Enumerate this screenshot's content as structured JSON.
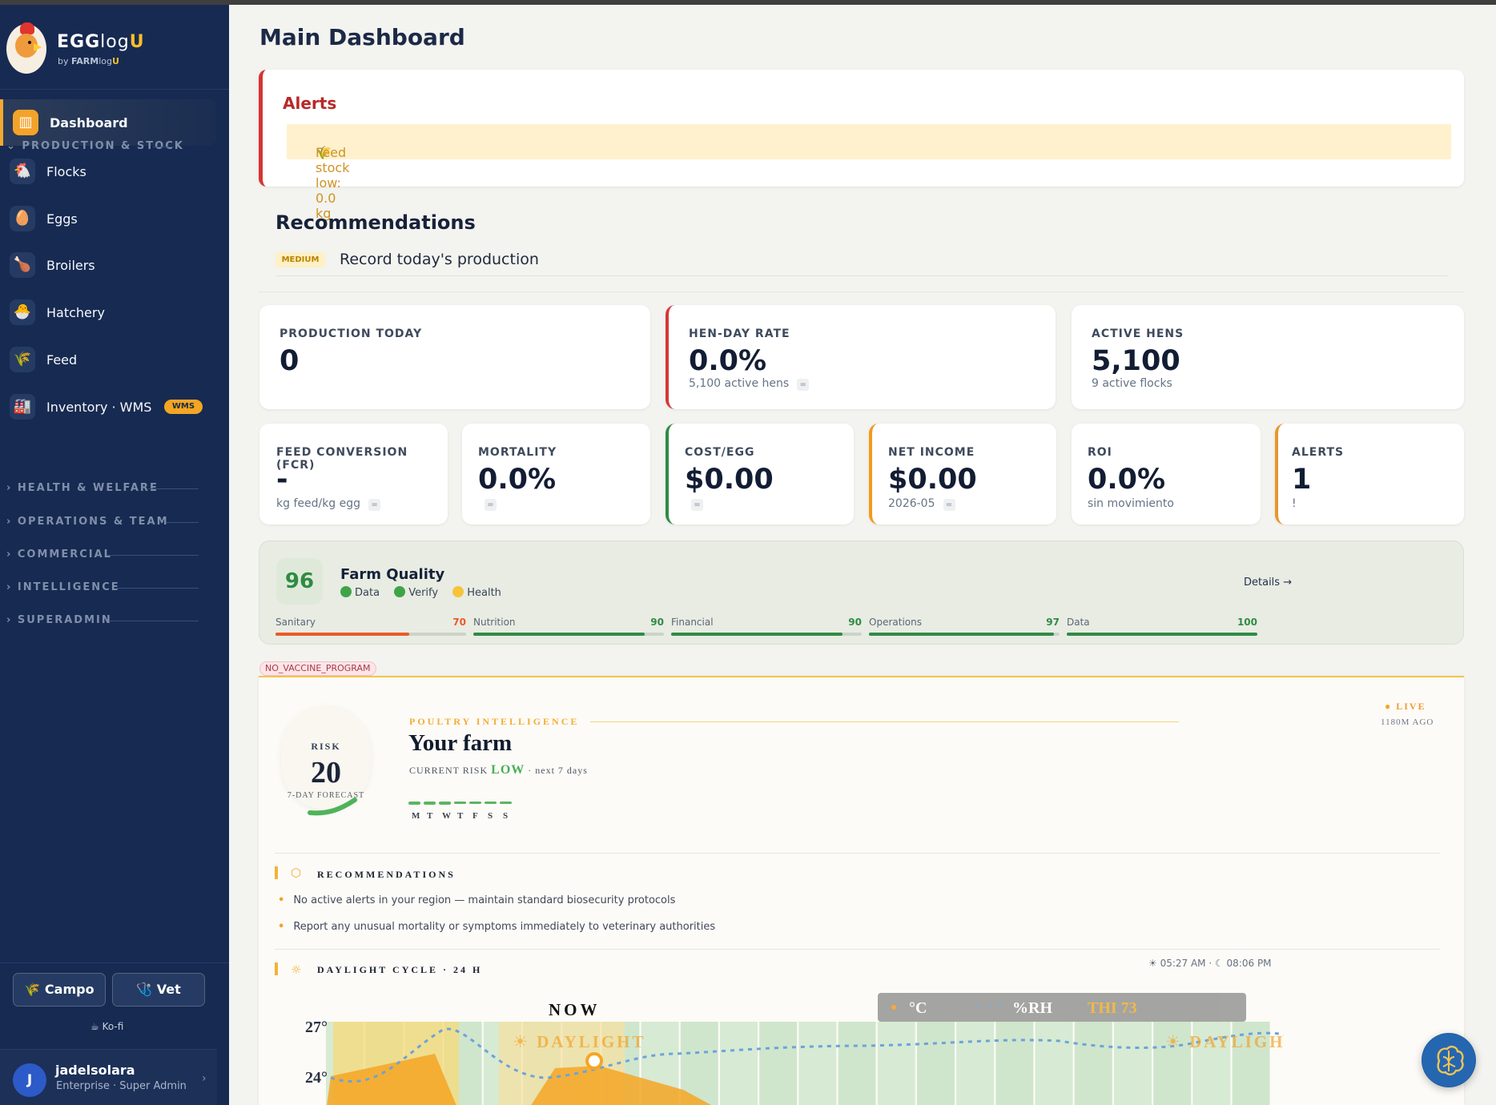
{
  "brand": {
    "name_egg": "EGG",
    "name_log": "log",
    "name_u": "U",
    "sub_by": "by ",
    "sub_farm": "FARM",
    "sub_log": "log",
    "sub_u": "U"
  },
  "sidebar": {
    "active": {
      "label": "Dashboard",
      "icon": "chart-icon"
    },
    "sections": [
      "PRODUCTION & STOCK",
      "HEALTH & WELFARE",
      "OPERATIONS & TEAM",
      "COMMERCIAL",
      "INTELLIGENCE",
      "SUPERADMIN"
    ],
    "items": [
      {
        "label": "Flocks",
        "icon": "chicken-icon"
      },
      {
        "label": "Eggs",
        "icon": "egg-icon"
      },
      {
        "label": "Broilers",
        "icon": "drumstick-icon"
      },
      {
        "label": "Hatchery",
        "icon": "chick-icon"
      },
      {
        "label": "Feed",
        "icon": "grain-icon"
      },
      {
        "label": "Inventory · WMS",
        "icon": "warehouse-icon",
        "badge": "WMS"
      }
    ],
    "buttons": {
      "campo": "Campo",
      "vet": "Vet"
    },
    "kofi": "Ko-fi",
    "user": {
      "initial": "J",
      "name": "jadelsolara",
      "role": "Enterprise · Super Admin"
    }
  },
  "page": {
    "title": "Main Dashboard"
  },
  "alerts": {
    "title": "Alerts",
    "items": [
      "Feed stock low: 0.0 kg"
    ]
  },
  "recommendations": {
    "title": "Recommendations",
    "items": [
      {
        "priority": "MEDIUM",
        "text": "Record today's production"
      }
    ]
  },
  "kpis": {
    "production_today": {
      "label": "PRODUCTION TODAY",
      "value": "0"
    },
    "hen_day_rate": {
      "label": "HEN-DAY RATE",
      "value": "0.0%",
      "sub": "5,100 active hens",
      "badge": "="
    },
    "active_hens": {
      "label": "ACTIVE HENS",
      "value": "5,100",
      "sub": "9 active flocks"
    },
    "fcr": {
      "label": "FEED CONVERSION (FCR)",
      "value": "-",
      "sub": "kg feed/kg egg",
      "badge": "="
    },
    "mortality": {
      "label": "MORTALITY",
      "value": "0.0%",
      "badge": "="
    },
    "cost_egg": {
      "label": "COST/EGG",
      "value": "$0.00",
      "badge": "="
    },
    "net_income": {
      "label": "NET INCOME",
      "value": "$0.00",
      "sub": "2026-05",
      "badge": "="
    },
    "roi": {
      "label": "ROI",
      "value": "0.0%",
      "sub": "sin movimiento"
    },
    "alerts_count": {
      "label": "ALERTS",
      "value": "1",
      "sub": "!"
    }
  },
  "farm_quality": {
    "score": "96",
    "title": "Farm Quality",
    "legend": [
      {
        "label": "Data",
        "color": "#3fa447"
      },
      {
        "label": "Verify",
        "color": "#3fa447"
      },
      {
        "label": "Health",
        "color": "#f6c33b"
      }
    ],
    "details": "Details →",
    "metrics": [
      {
        "name": "Sanitary",
        "value": 70,
        "label": "70",
        "fill": 0.7,
        "color": "#ea5a28"
      },
      {
        "name": "Nutrition",
        "value": 90,
        "label": "90",
        "fill": 0.9,
        "color": "#2f8b45"
      },
      {
        "name": "Financial",
        "value": 90,
        "label": "90",
        "fill": 0.9,
        "color": "#2f8b45"
      },
      {
        "name": "Operations",
        "value": 97,
        "label": "97",
        "fill": 0.97,
        "color": "#2f8b45"
      },
      {
        "name": "Data",
        "value": 100,
        "label": "100",
        "fill": 1.0,
        "color": "#2f8b45"
      }
    ]
  },
  "program_tag": "NO_VACCINE_PROGRAM",
  "intelligence": {
    "risk_label": "RISK",
    "risk_value": "20",
    "forecast_label": "7-DAY FORECAST",
    "risk_fraction": 0.2,
    "kicker": "POULTRY INTELLIGENCE",
    "title": "Your farm",
    "current_risk_label": "CURRENT RISK",
    "current_risk": "LOW",
    "horizon": "· next 7 days",
    "days": [
      "M",
      "T",
      "W",
      "T",
      "F",
      "S",
      "S"
    ],
    "live": "LIVE",
    "ago": "1180M AGO",
    "rec_title": "RECOMMENDATIONS",
    "recs": [
      "No active alerts in your region — maintain standard biosecurity protocols",
      "Report any unusual mortality or symptoms immediately to veterinary authorities"
    ],
    "daylight_title": "DAYLIGHT CYCLE · 24 H",
    "sunrise": "☀ 05:27 AM · ☾ 08:06 PM",
    "now": "NOW",
    "daylight": "☀ DAYLIGHT",
    "daylight_right": "☀ DAYLIGH",
    "legend": {
      "temp": "°C",
      "rh": "%RH",
      "thi": "THI 73"
    },
    "y_ticks": [
      "27°",
      "24°"
    ]
  }
}
